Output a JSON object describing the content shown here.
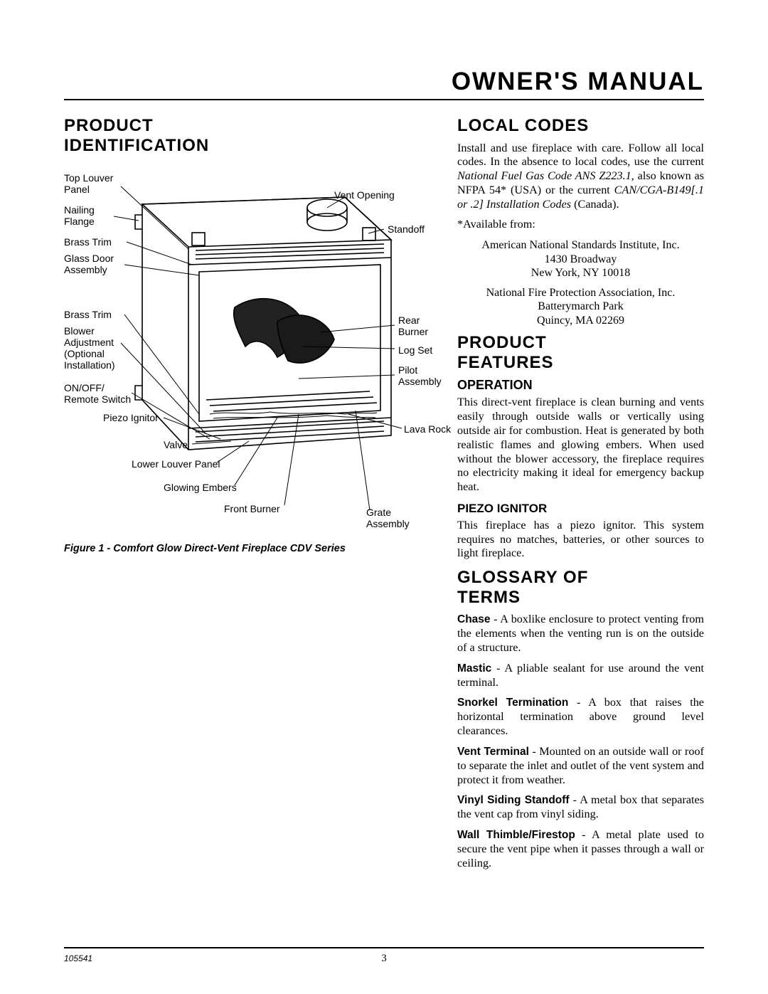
{
  "header": {
    "title": "OWNER'S MANUAL"
  },
  "left": {
    "h_product_id": "PRODUCT IDENTIFICATION",
    "diagram": {
      "labels": {
        "top_louver_panel": "Top Louver\nPanel",
        "nailing_flange": "Nailing\nFlange",
        "brass_trim_top": "Brass Trim",
        "glass_door": "Glass Door\nAssembly",
        "brass_trim_bot": "Brass Trim",
        "blower": "Blower\nAdjustment\n(Optional\nInstallation)",
        "onoff": "ON/OFF/\nRemote Switch",
        "piezo": "Piezo Ignitor",
        "valve": "Valve",
        "lower_louver": "Lower Louver Panel",
        "glowing_embers": "Glowing Embers",
        "front_burner": "Front Burner",
        "vent_opening": "Vent Opening",
        "standoff": "Standoff",
        "rear_burner": "Rear\nBurner",
        "log_set": "Log Set",
        "pilot": "Pilot\nAssembly",
        "lava_rock": "Lava Rock",
        "grate": "Grate\nAssembly"
      }
    },
    "caption": "Figure 1 - Comfort Glow Direct-Vent Fireplace CDV Series"
  },
  "right": {
    "h_local_codes": "LOCAL CODES",
    "local_codes_p1_a": "Install and use fireplace with care. Follow all local codes. In the absence to local codes, use the current ",
    "local_codes_p1_b": "National Fuel Gas Code ANS Z223.1",
    "local_codes_p1_c": ", also known as NFPA 54* (USA) or the current ",
    "local_codes_p1_d": "CAN/CGA-B149[.1 or .2] Installation Codes",
    "local_codes_p1_e": " (Canada).",
    "available_from": "*Available from:",
    "addr1_l1": "American National Standards Institute, Inc.",
    "addr1_l2": "1430 Broadway",
    "addr1_l3": "New York, NY 10018",
    "addr2_l1": "National Fire Protection Association, Inc.",
    "addr2_l2": "Batterymarch Park",
    "addr2_l3": "Quincy, MA 02269",
    "h_product_features": "PRODUCT FEATURES",
    "h_operation": "OPERATION",
    "operation_p": "This direct-vent fireplace is clean burning and vents easily through outside walls or vertically using outside air for combustion. Heat is generated by both realistic flames and glowing embers. When used without the blower accessory, the fireplace requires no electricity making it ideal for emergency backup heat.",
    "h_piezo": "PIEZO IGNITOR",
    "piezo_p": "This fireplace has a piezo ignitor. This system requires no matches, batteries, or other sources to light fireplace.",
    "h_glossary": "GLOSSARY OF TERMS",
    "glossary": {
      "chase_t": "Chase",
      "chase_d": " - A boxlike enclosure to protect venting from the elements when the venting run is on the outside of a structure.",
      "mastic_t": "Mastic",
      "mastic_d": " - A pliable sealant for use around the vent terminal.",
      "snorkel_t": "Snorkel Termination",
      "snorkel_d": " - A box that raises the horizontal termination above ground level clearances.",
      "vent_t": "Vent Terminal",
      "vent_d": " - Mounted on an outside wall or roof to separate the inlet and outlet of the vent system and protect it from weather.",
      "vinyl_t": "Vinyl Siding Standoff",
      "vinyl_d": " - A metal box that separates the vent cap from vinyl siding.",
      "wall_t": "Wall Thimble/Firestop",
      "wall_d": " - A metal plate used to secure the vent pipe when it passes through a wall or ceiling."
    }
  },
  "footer": {
    "docnum": "105541",
    "page": "3"
  }
}
